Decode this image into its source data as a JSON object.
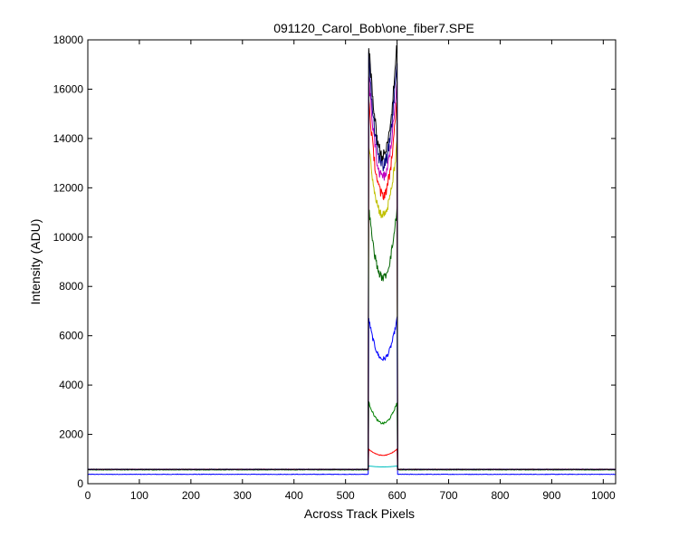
{
  "chart_data": {
    "type": "line",
    "title": "091120_Carol_Bob\\one_fiber7.SPE",
    "xlabel": "Across Track Pixels",
    "ylabel": "Intensity (ADU)",
    "xlim": [
      0,
      1024
    ],
    "ylim": [
      0,
      18000
    ],
    "xticks": [
      0,
      100,
      200,
      300,
      400,
      500,
      600,
      700,
      800,
      900,
      1000
    ],
    "yticks": [
      0,
      2000,
      4000,
      6000,
      8000,
      10000,
      12000,
      14000,
      16000,
      18000
    ],
    "grid": false,
    "legend": "none",
    "fiber_region": [
      545,
      600
    ],
    "baseline_outside": 580,
    "series": [
      {
        "color": "#0000ff",
        "baseline": 380,
        "edge": 6700,
        "center": 5050
      },
      {
        "color": "#008000",
        "baseline": 560,
        "edge": 3300,
        "center": 2450
      },
      {
        "color": "#ff0000",
        "baseline": 580,
        "edge": 1400,
        "center": 1150
      },
      {
        "color": "#00bfbf",
        "baseline": 580,
        "edge": 720,
        "center": 680
      },
      {
        "color": "#006400",
        "baseline": 580,
        "edge": 11200,
        "center": 8350
      },
      {
        "color": "#c0c000",
        "baseline": 580,
        "edge": 13800,
        "center": 10900
      },
      {
        "color": "#ff0000",
        "baseline": 580,
        "edge": 15600,
        "center": 11700
      },
      {
        "color": "#bf00bf",
        "baseline": 580,
        "edge": 16500,
        "center": 12400
      },
      {
        "color": "#000080",
        "baseline": 580,
        "edge": 17300,
        "center": 12900
      },
      {
        "color": "#000000",
        "baseline": 580,
        "edge": 17900,
        "center": 13300
      }
    ]
  }
}
